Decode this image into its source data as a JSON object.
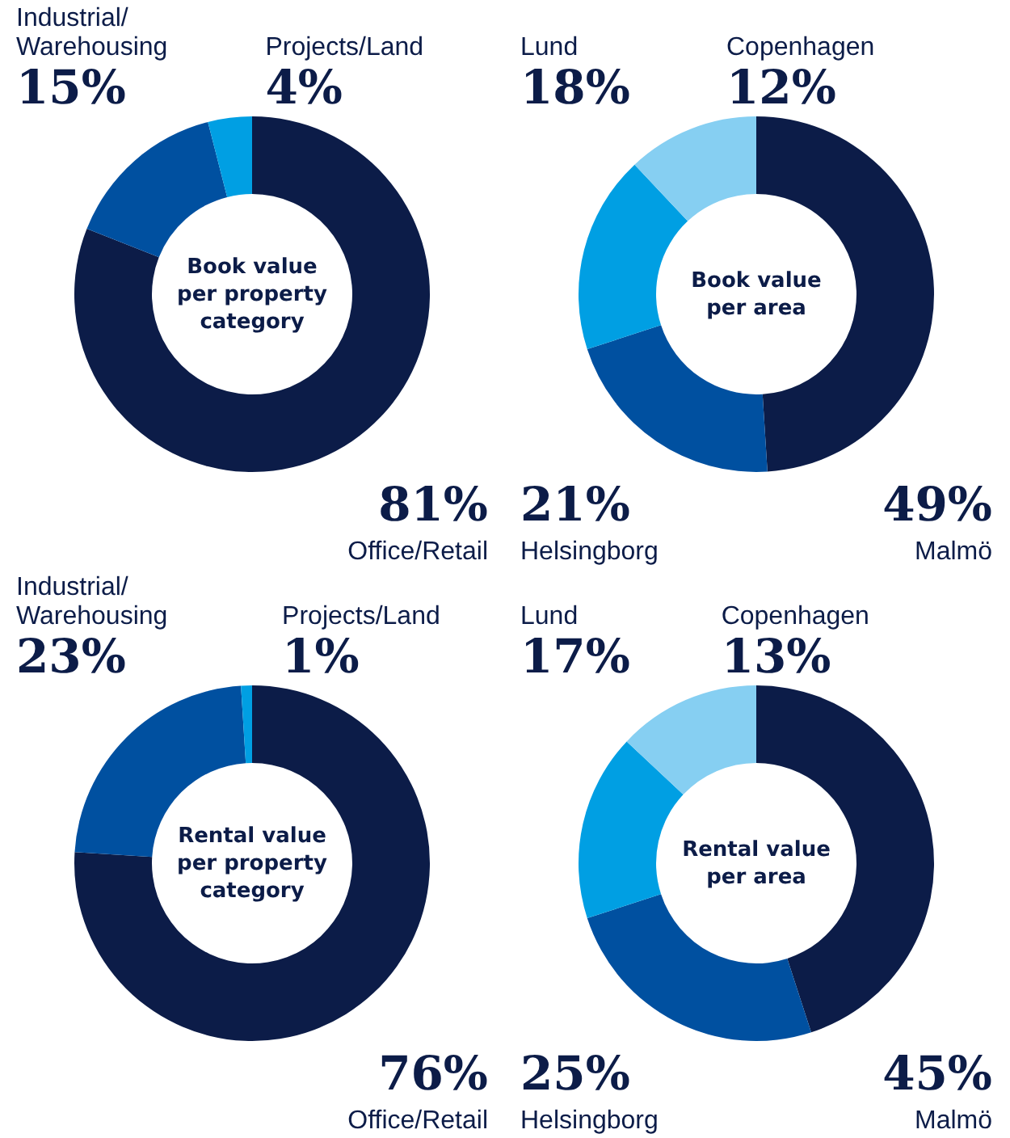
{
  "chart_data": [
    {
      "type": "donut",
      "title": "Book value per property category",
      "categories": [
        "Office/Retail",
        "Industrial/Warehousing",
        "Projects/Land"
      ],
      "values": [
        81,
        15,
        4
      ],
      "value_labels": [
        "81%",
        "15%",
        "4%"
      ],
      "colors": [
        "#0c1c48",
        "#0050a0",
        "#009fe3"
      ]
    },
    {
      "type": "donut",
      "title": "Book value per area",
      "categories": [
        "Malmö",
        "Helsingborg",
        "Lund",
        "Copenhagen"
      ],
      "values": [
        49,
        21,
        18,
        12
      ],
      "value_labels": [
        "49%",
        "21%",
        "18%",
        "12%"
      ],
      "colors": [
        "#0c1c48",
        "#0050a0",
        "#009fe3",
        "#86cff2"
      ]
    },
    {
      "type": "donut",
      "title": "Rental value per property category",
      "categories": [
        "Office/Retail",
        "Industrial/Warehousing",
        "Projects/Land"
      ],
      "values": [
        76,
        23,
        1
      ],
      "value_labels": [
        "76%",
        "23%",
        "1%"
      ],
      "colors": [
        "#0c1c48",
        "#0050a0",
        "#009fe3"
      ]
    },
    {
      "type": "donut",
      "title": "Rental value per area",
      "categories": [
        "Malmö",
        "Helsingborg",
        "Lund",
        "Copenhagen"
      ],
      "values": [
        45,
        25,
        17,
        13
      ],
      "value_labels": [
        "45%",
        "25%",
        "17%",
        "13%"
      ],
      "colors": [
        "#0c1c48",
        "#0050a0",
        "#009fe3",
        "#86cff2"
      ]
    }
  ]
}
